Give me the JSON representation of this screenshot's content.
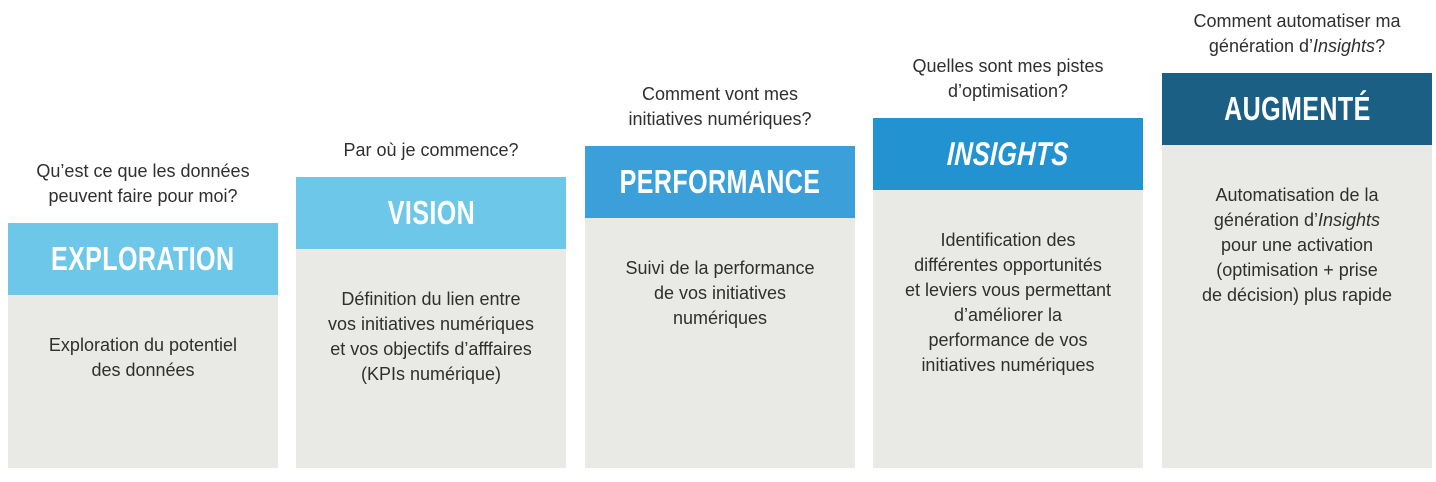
{
  "palette": {
    "stage_light_blue": "#6CC7E9",
    "stage_medium_blue": "#3B9FD9",
    "stage_strong_blue": "#2292D1",
    "stage_dark_blue": "#1C5F84",
    "body_gray": "#E9E9E6",
    "text_dark": "#2F2F2F",
    "title_white": "#FFFFFF"
  },
  "columns": [
    {
      "id": "exploration",
      "question": "Qu’est ce que les données\npeuvent faire pour moi?",
      "title": "EXPLORATION",
      "band_color": "#6CC7E9",
      "description": "Exploration du potentiel\ndes données"
    },
    {
      "id": "vision",
      "question": "Par où je commence?",
      "title": "VISION",
      "band_color": "#6CC7E9",
      "description": "Définition du lien entre\nvos initiatives numériques\net vos objectifs d’afffaires\n(KPIs numérique)"
    },
    {
      "id": "performance",
      "question": "Comment vont mes\ninitiatives numériques?",
      "title": "PERFORMANCE",
      "band_color": "#3B9FD9",
      "description": "Suivi de la performance\nde vos initiatives\nnumériques"
    },
    {
      "id": "insights",
      "question": "Quelles sont mes pistes\nd’optimisation?",
      "title": "INSIGHTS",
      "band_color": "#2292D1",
      "description": "Identification des\ndifférentes opportunités\net leviers vous permettant\nd’améliorer la\nperformance de vos\ninitiatives numériques"
    },
    {
      "id": "augmente",
      "question_parts": [
        "Comment automatiser ma\ngénération d’",
        "Insights",
        "?"
      ],
      "title": "AUGMENTÉ",
      "band_color": "#1C5F84",
      "description_parts": [
        "Automatisation de la\ngénération d’",
        "Insights",
        "\npour une activation\n(optimisation + prise\nde décision) plus rapide"
      ]
    }
  ]
}
